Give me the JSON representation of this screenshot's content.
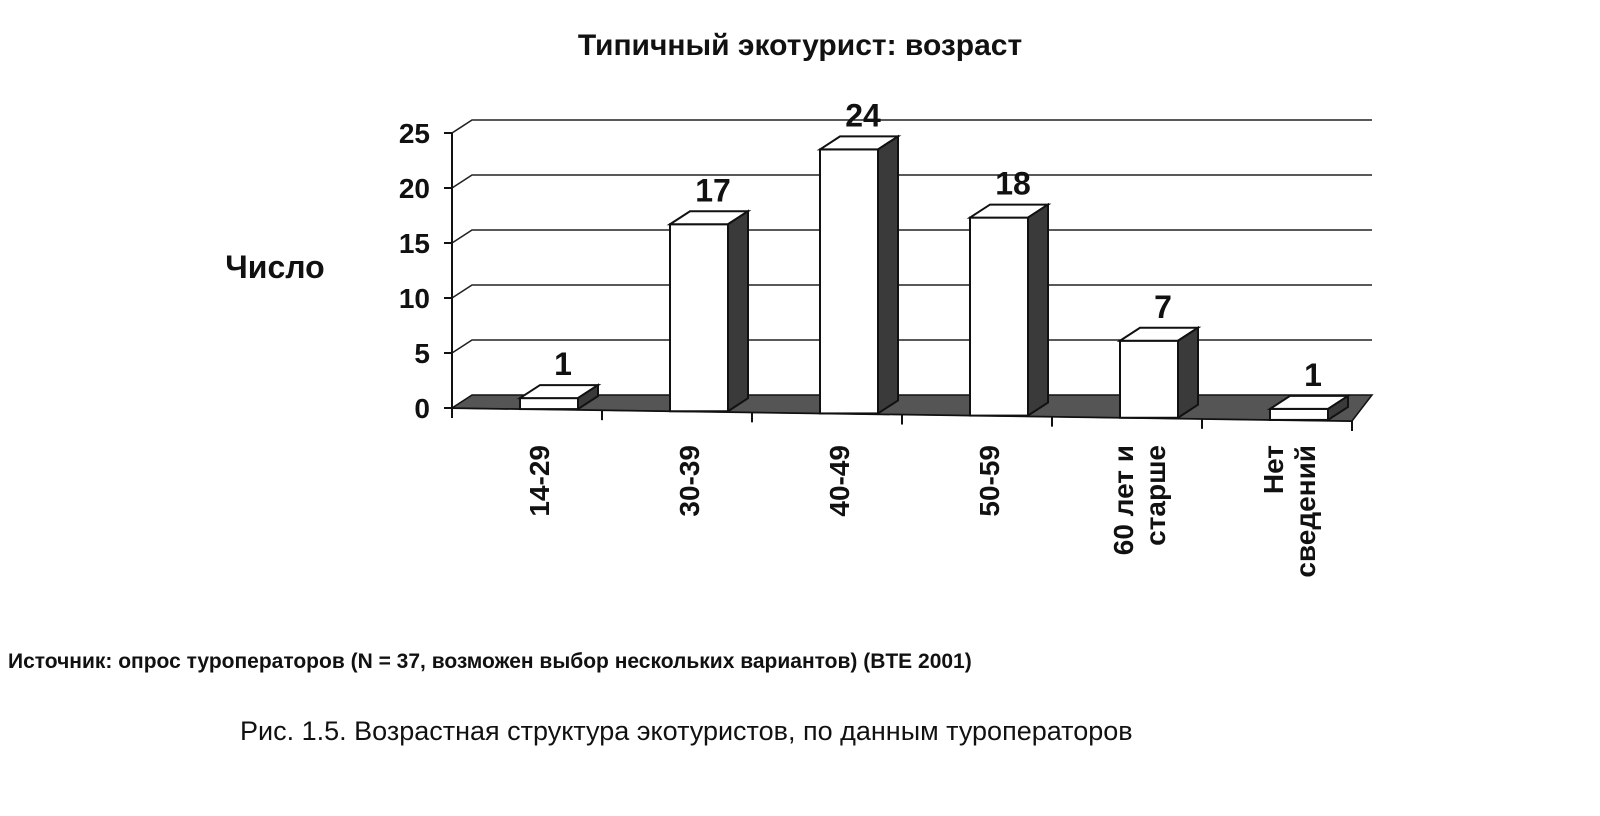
{
  "chart_data": {
    "type": "bar",
    "title": "Типичный экотурист: возраст",
    "xlabel": "",
    "ylabel": "Число",
    "categories": [
      [
        "14-29"
      ],
      [
        "30-39"
      ],
      [
        "40-49"
      ],
      [
        "50-59"
      ],
      [
        "60 лет и",
        "старше"
      ],
      [
        "Нет",
        "сведений"
      ]
    ],
    "values": [
      1,
      17,
      24,
      18,
      7,
      1
    ],
    "data_labels": [
      "1",
      "17",
      "24",
      "18",
      "7",
      "1"
    ],
    "ylim": [
      0,
      25
    ],
    "yticks": [
      0,
      5,
      10,
      15,
      20,
      25
    ],
    "grid": true,
    "legend": "none",
    "style": "3d-column",
    "colors": {
      "bar_face": "#ffffff",
      "bar_side": "#3a3a3a",
      "bar_top": "#ffffff",
      "floor": "#555555",
      "grid": "#222222",
      "outline": "#111111"
    }
  },
  "footer": {
    "source": "Источник: опрос туроператоров (N = 37, возможен выбор нескольких вариантов) (BTE 2001)",
    "caption": "Рис. 1.5. Возрастная структура экотуристов, по данным туроператоров"
  }
}
